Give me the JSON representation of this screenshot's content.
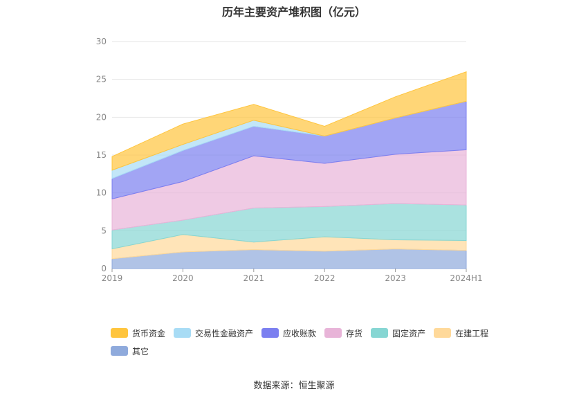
{
  "chart_data": {
    "type": "area",
    "stacked": true,
    "title": "历年主要资产堆积图（亿元）",
    "categories": [
      "2019",
      "2020",
      "2021",
      "2022",
      "2023",
      "2024H1"
    ],
    "ylim": [
      0,
      30
    ],
    "yticks": [
      "0",
      "5",
      "10",
      "15",
      "20",
      "25",
      "30"
    ],
    "grid": true,
    "legend_position": "bottom",
    "series": [
      {
        "name": "其它",
        "color": "#8FAADC",
        "values": [
          1.3,
          2.2,
          2.5,
          2.3,
          2.6,
          2.4
        ]
      },
      {
        "name": "在建工程",
        "color": "#FFD99A",
        "values": [
          1.3,
          2.3,
          1.0,
          1.9,
          1.2,
          1.3
        ]
      },
      {
        "name": "固定资产",
        "color": "#86D6D3",
        "values": [
          2.5,
          1.9,
          4.5,
          4.0,
          4.8,
          4.7
        ]
      },
      {
        "name": "存货",
        "color": "#E8B4D8",
        "values": [
          4.1,
          5.1,
          6.9,
          5.7,
          6.5,
          7.3
        ]
      },
      {
        "name": "应收账款",
        "color": "#7B7FF0",
        "values": [
          2.7,
          4.1,
          3.9,
          3.6,
          4.8,
          6.4
        ]
      },
      {
        "name": "交易性金融资产",
        "color": "#A8DCF5",
        "values": [
          1.1,
          0.8,
          0.8,
          0.0,
          0.0,
          0.0
        ]
      },
      {
        "name": "货币资金",
        "color": "#FFC53D",
        "values": [
          1.8,
          2.7,
          2.1,
          1.3,
          2.8,
          3.9
        ]
      }
    ]
  },
  "legend_order": [
    "货币资金",
    "交易性金融资产",
    "应收账款",
    "存货",
    "固定资产",
    "在建工程",
    "其它"
  ],
  "source": "数据来源：恒生聚源"
}
